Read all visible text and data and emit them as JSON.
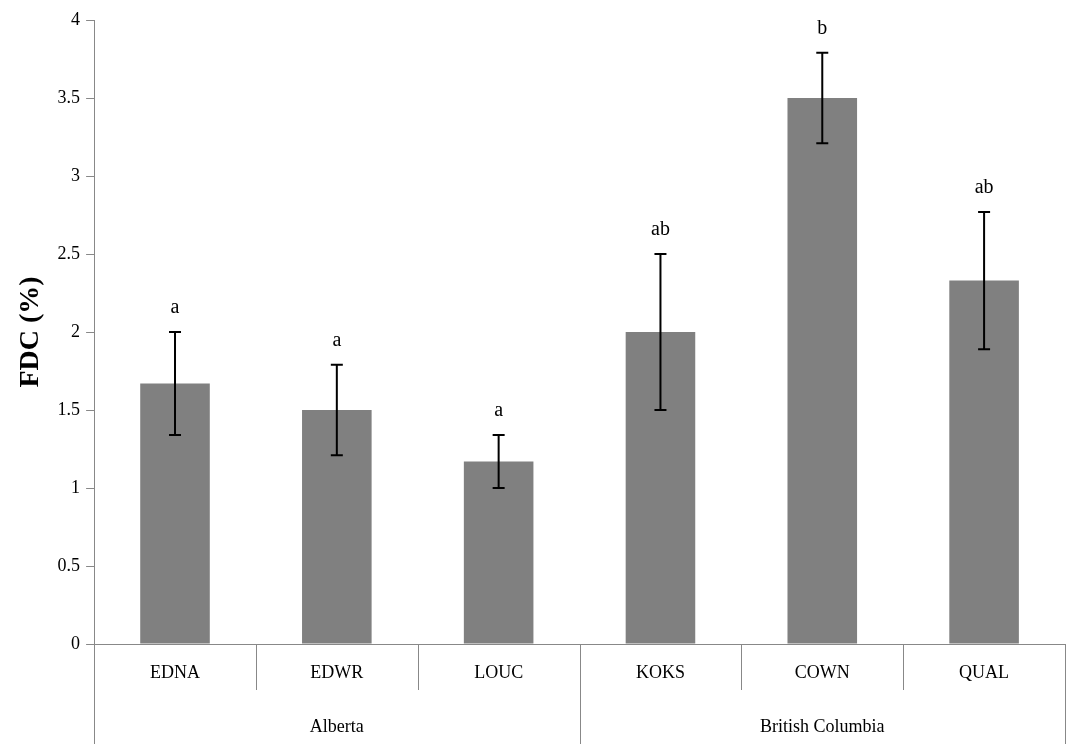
{
  "chart_data": {
    "type": "bar",
    "ylabel": "FDC (%)",
    "categories": [
      "EDNA",
      "EDWR",
      "LOUC",
      "KOKS",
      "COWN",
      "QUAL"
    ],
    "values": [
      1.67,
      1.5,
      1.17,
      2.0,
      3.5,
      2.33
    ],
    "errors": [
      0.33,
      0.29,
      0.17,
      0.5,
      0.29,
      0.44
    ],
    "color": "#808080",
    "ylim": [
      0,
      4
    ],
    "yticks": [
      0,
      0.5,
      1,
      1.5,
      2,
      2.5,
      3,
      3.5,
      4
    ],
    "grid": false,
    "annotations": [
      {
        "text": "a",
        "x": "EDNA",
        "y": 2.0
      },
      {
        "text": "a",
        "x": "EDWR",
        "y": 1.79
      },
      {
        "text": "a",
        "x": "LOUC",
        "y": 1.34
      },
      {
        "text": "ab",
        "x": "KOKS",
        "y": 2.5
      },
      {
        "text": "b",
        "x": "COWN",
        "y": 3.79
      },
      {
        "text": "ab",
        "x": "QUAL",
        "y": 2.77
      },
      "Alberta",
      "British Columbia"
    ]
  }
}
